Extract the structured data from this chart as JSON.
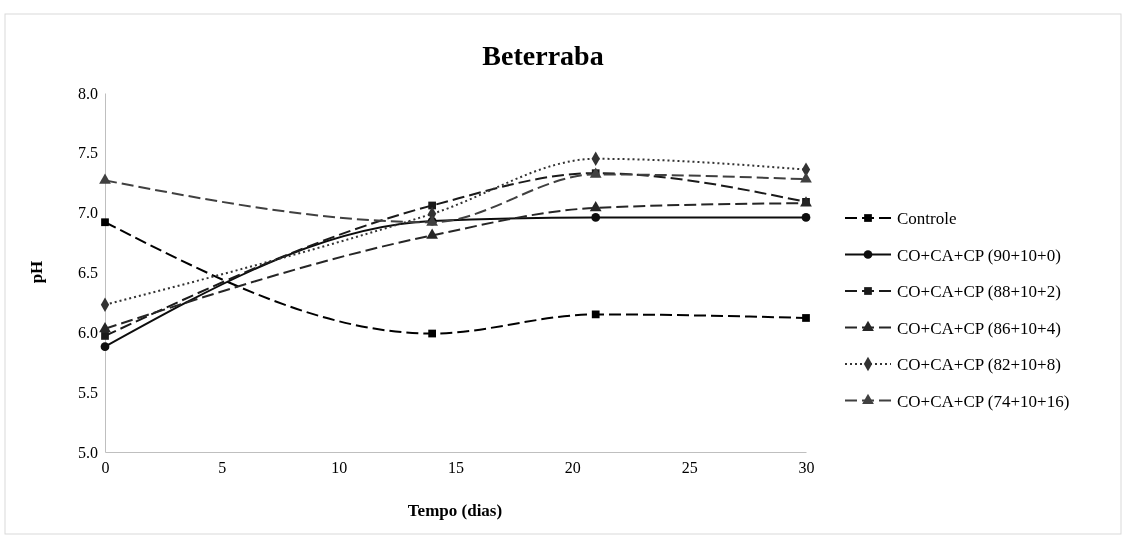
{
  "chart_data": {
    "type": "line",
    "title": "Beterraba",
    "xlabel": "Tempo (dias)",
    "ylabel": "pH",
    "x": [
      0,
      14,
      21,
      30
    ],
    "xlim": [
      0,
      30
    ],
    "xticks": [
      0,
      5,
      10,
      15,
      20,
      25,
      30
    ],
    "ylim": [
      5.0,
      8.0
    ],
    "yticks": [
      {
        "value": 5,
        "label": "5.0"
      },
      {
        "value": 5.5,
        "label": "5.5"
      },
      {
        "value": 6,
        "label": "6.0"
      },
      {
        "value": 6.5,
        "label": "6.5"
      },
      {
        "value": 7,
        "label": "7.0"
      },
      {
        "value": 7.5,
        "label": "7.5"
      },
      {
        "value": 8,
        "label": "8.0"
      }
    ],
    "grid": false,
    "legend": "right",
    "series": [
      {
        "name": "Controle",
        "color": "#000000",
        "marker": "square",
        "line_style": "dashed",
        "values": [
          6.92,
          5.99,
          6.15,
          6.12
        ]
      },
      {
        "name": "CO+CA+CP (90+10+0)",
        "color": "#0d0d0d",
        "marker": "circle",
        "line_style": "solid",
        "values": [
          5.88,
          6.93,
          6.96,
          6.96
        ]
      },
      {
        "name": "CO+CA+CP (88+10+2)",
        "color": "#1a1a1a",
        "marker": "square",
        "line_style": "dashed",
        "values": [
          5.97,
          7.06,
          7.33,
          7.09
        ]
      },
      {
        "name": "CO+CA+CP (86+10+4)",
        "color": "#262626",
        "marker": "triangle",
        "line_style": "dashed",
        "values": [
          6.03,
          6.81,
          7.04,
          7.08
        ]
      },
      {
        "name": "CO+CA+CP (82+10+8)",
        "color": "#333333",
        "marker": "diamond",
        "line_style": "dotted",
        "values": [
          6.23,
          6.99,
          7.45,
          7.36
        ]
      },
      {
        "name": "CO+CA+CP (74+10+16)",
        "color": "#404040",
        "marker": "triangle",
        "line_style": "dashed",
        "values": [
          7.27,
          6.92,
          7.32,
          7.28
        ]
      }
    ]
  }
}
